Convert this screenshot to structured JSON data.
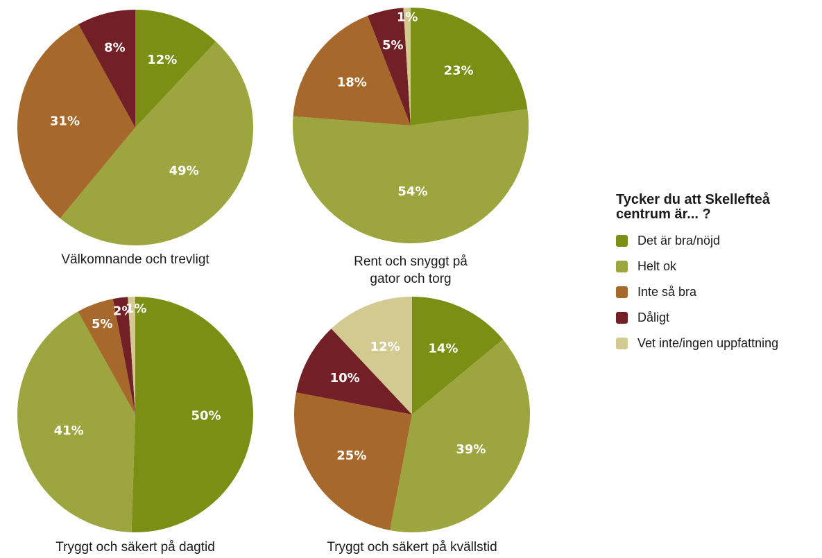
{
  "legend": {
    "title": "Tycker du att Skellefteå centrum är... ?",
    "items": [
      {
        "label": "Det är bra/nöjd",
        "color": "#7a8f13"
      },
      {
        "label": "Helt ok",
        "color": "#9da53f"
      },
      {
        "label": "Inte så bra",
        "color": "#a6692b"
      },
      {
        "label": "Dåligt",
        "color": "#721f26"
      },
      {
        "label": "Vet inte/ingen uppfattning",
        "color": "#d3ca92"
      }
    ]
  },
  "chart_data": [
    {
      "type": "pie",
      "title": "Välkomnande och trevligt",
      "categories": [
        "Det är bra/nöjd",
        "Helt ok",
        "Inte så bra",
        "Dåligt",
        "Vet inte/ingen uppfattning"
      ],
      "values": [
        12,
        49,
        31,
        8,
        0
      ],
      "labels": [
        "12%",
        "49%",
        "31%",
        "8%",
        ""
      ]
    },
    {
      "type": "pie",
      "title": "Rent och snyggt på gator och torg",
      "categories": [
        "Det är bra/nöjd",
        "Helt ok",
        "Inte så bra",
        "Dåligt",
        "Vet inte/ingen uppfattning"
      ],
      "values": [
        23,
        54,
        18,
        5,
        1
      ],
      "labels": [
        "23%",
        "54%",
        "18%",
        "5%",
        "1%"
      ]
    },
    {
      "type": "pie",
      "title": "Tryggt och säkert på dagtid",
      "categories": [
        "Det är bra/nöjd",
        "Helt ok",
        "Inte så bra",
        "Dåligt",
        "Vet inte/ingen uppfattning"
      ],
      "values": [
        50,
        41,
        5,
        2,
        1
      ],
      "labels": [
        "50%",
        "41%",
        "5%",
        "2%",
        "1%"
      ]
    },
    {
      "type": "pie",
      "title": "Tryggt och säkert på kvällstid",
      "categories": [
        "Det är bra/nöjd",
        "Helt ok",
        "Inte så bra",
        "Dåligt",
        "Vet inte/ingen uppfattning"
      ],
      "values": [
        14,
        39,
        25,
        10,
        12
      ],
      "labels": [
        "14%",
        "39%",
        "25%",
        "10%",
        "12%"
      ]
    }
  ]
}
